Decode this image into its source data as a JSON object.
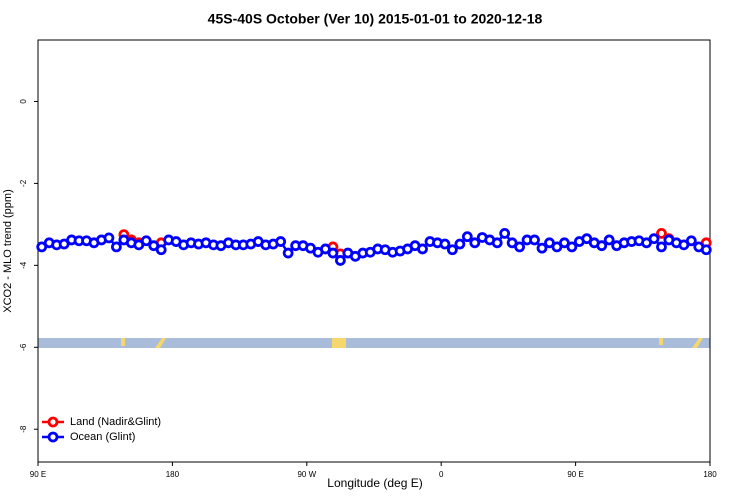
{
  "chart_data": {
    "type": "line",
    "title": "45S-40S October (Ver 10)   2015-01-01 to 2020-12-18",
    "xlabel": "Longitude (deg E)",
    "ylabel": "XCO2 - MLO trend (ppm)",
    "xlim": [
      90,
      540
    ],
    "xticks": [
      {
        "value": 90,
        "label": "90 E"
      },
      180,
      {
        "value": 270,
        "label": "90 W"
      },
      {
        "value": 360,
        "label": "0"
      },
      {
        "value": 450,
        "label": "90 E"
      },
      {
        "value": 540,
        "label": "180"
      }
    ],
    "ylim": [
      -8.8,
      1.5
    ],
    "yticks": [
      0,
      -2,
      -4,
      -6,
      -8
    ],
    "legend": "bottom-left",
    "series": [
      {
        "name": "Land (Nadir&Glint)",
        "color": "#ff0000",
        "x": [
          147.5,
          152.5,
          157.5,
          162.5,
          167.5,
          172.5,
          177.5,
          282.5,
          287.5,
          292.5,
          297.5,
          502.5,
          507.5,
          512.5,
          532.5,
          537.5
        ],
        "values": [
          -3.25,
          -3.38,
          -3.45,
          null,
          null,
          -3.45,
          null,
          null,
          -3.55,
          -3.72,
          null,
          null,
          -3.22,
          -3.35,
          null,
          -3.45
        ]
      },
      {
        "name": "Ocean (Glint)",
        "color": "#0000ff",
        "x": [
          92.5,
          97.5,
          102.5,
          107.5,
          112.5,
          117.5,
          122.5,
          127.5,
          132.5,
          137.5,
          142.5,
          147.5,
          152.5,
          157.5,
          162.5,
          167.5,
          172.5,
          177.5,
          182.5,
          187.5,
          192.5,
          197.5,
          202.5,
          207.5,
          212.5,
          217.5,
          222.5,
          227.5,
          232.5,
          237.5,
          242.5,
          247.5,
          252.5,
          257.5,
          262.5,
          267.5,
          272.5,
          277.5,
          282.5,
          287.5,
          292.5,
          297.5,
          302.5,
          307.5,
          312.5,
          317.5,
          322.5,
          327.5,
          332.5,
          337.5,
          342.5,
          347.5,
          352.5,
          357.5,
          362.5,
          367.5,
          372.5,
          377.5,
          382.5,
          387.5,
          392.5,
          397.5,
          402.5,
          407.5,
          412.5,
          417.5,
          422.5,
          427.5,
          432.5,
          437.5,
          442.5,
          447.5,
          452.5,
          457.5,
          462.5,
          467.5,
          472.5,
          477.5,
          482.5,
          487.5,
          492.5,
          497.5,
          502.5,
          507.5,
          512.5,
          517.5,
          522.5,
          527.5,
          532.5,
          537.5
        ],
        "values": [
          -3.55,
          -3.45,
          -3.5,
          -3.48,
          -3.38,
          -3.4,
          -3.4,
          -3.45,
          -3.38,
          -3.33,
          -3.55,
          -3.38,
          -3.45,
          -3.5,
          -3.4,
          -3.52,
          -3.62,
          -3.38,
          -3.42,
          -3.5,
          -3.45,
          -3.48,
          -3.45,
          -3.5,
          -3.52,
          -3.45,
          -3.5,
          -3.5,
          -3.48,
          -3.42,
          -3.5,
          -3.48,
          -3.42,
          -3.7,
          -3.52,
          -3.52,
          -3.58,
          -3.68,
          -3.6,
          -3.7,
          -3.88,
          -3.7,
          -3.78,
          -3.7,
          -3.68,
          -3.6,
          -3.62,
          -3.68,
          -3.65,
          -3.6,
          -3.52,
          -3.6,
          -3.42,
          -3.45,
          -3.48,
          -3.62,
          -3.48,
          -3.3,
          -3.45,
          -3.32,
          -3.38,
          -3.45,
          -3.22,
          -3.45,
          -3.55,
          -3.38,
          -3.38,
          -3.58,
          -3.45,
          -3.55,
          -3.45,
          -3.55,
          -3.42,
          -3.35,
          -3.45,
          -3.52,
          -3.38,
          -3.52,
          -3.45,
          -3.42,
          -3.4,
          -3.45,
          -3.35,
          -3.55,
          -3.38,
          -3.45,
          -3.5,
          -3.4,
          -3.55,
          -3.62
        ]
      }
    ]
  }
}
